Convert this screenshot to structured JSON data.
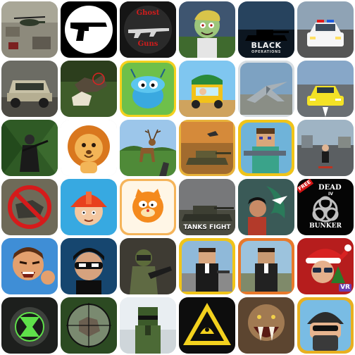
{
  "tiles": [
    {
      "name": "app-icon-helicopter-city",
      "icon": "helicopter-city-icon"
    },
    {
      "name": "app-icon-pistol",
      "icon": "pistol-icon"
    },
    {
      "name": "app-icon-ghost-guns",
      "icon": "rifle-icon",
      "title": "Ghost",
      "subtitle": "Guns"
    },
    {
      "name": "app-icon-zombie",
      "icon": "zombie-icon"
    },
    {
      "name": "app-icon-black-operations",
      "icon": "tank-silhouette-icon",
      "title": "BLACK",
      "subtitle": "OPERATIONS"
    },
    {
      "name": "app-icon-police-car",
      "icon": "police-car-icon"
    },
    {
      "name": "app-icon-military-jeep",
      "icon": "jeep-icon"
    },
    {
      "name": "app-icon-wolf-hunt",
      "icon": "wolf-icon"
    },
    {
      "name": "app-icon-blue-bug",
      "icon": "bug-icon"
    },
    {
      "name": "app-icon-tuk-tuk",
      "icon": "rickshaw-icon"
    },
    {
      "name": "app-icon-fighter-jet",
      "icon": "jet-icon"
    },
    {
      "name": "app-icon-yellow-racer",
      "icon": "sports-car-icon"
    },
    {
      "name": "app-icon-jungle-hunter",
      "icon": "hunter-icon"
    },
    {
      "name": "app-icon-cartoon-lion",
      "icon": "lion-icon"
    },
    {
      "name": "app-icon-deer-hunting",
      "icon": "deer-icon"
    },
    {
      "name": "app-icon-tank-battle",
      "icon": "tank-icon"
    },
    {
      "name": "app-icon-block-sniper",
      "icon": "block-sniper-icon"
    },
    {
      "name": "app-icon-skateboard-runner",
      "icon": "skater-icon"
    },
    {
      "name": "app-icon-no-hunting",
      "icon": "prohibited-icon"
    },
    {
      "name": "app-icon-construction-boy",
      "icon": "hardhat-boy-icon"
    },
    {
      "name": "app-icon-garfield",
      "icon": "cat-icon"
    },
    {
      "name": "app-icon-tanks-fight",
      "icon": "tank-icon",
      "title": "TANKS FIGHT"
    },
    {
      "name": "app-icon-dragon-warrior",
      "icon": "dragon-icon"
    },
    {
      "name": "app-icon-dead-bunker",
      "icon": "biohazard-icon",
      "badge": "FREE",
      "title": "DEAD",
      "middle": "IV",
      "subtitle": "BUNKER"
    },
    {
      "name": "app-icon-brawler",
      "icon": "brawler-icon"
    },
    {
      "name": "app-icon-masked-hero",
      "icon": "masked-hero-icon"
    },
    {
      "name": "app-icon-soldier-shooter",
      "icon": "soldier-icon"
    },
    {
      "name": "app-icon-block-mafia",
      "icon": "block-suit-icon"
    },
    {
      "name": "app-icon-block-gangster",
      "icon": "block-suit-icon"
    },
    {
      "name": "app-icon-santa-vr",
      "icon": "santa-icon",
      "badge": "VR"
    },
    {
      "name": "app-icon-alien-watch",
      "icon": "omnitrix-icon"
    },
    {
      "name": "app-icon-wolf-sniper",
      "icon": "crosshair-icon"
    },
    {
      "name": "app-icon-block-soldier",
      "icon": "block-soldier-icon"
    },
    {
      "name": "app-icon-warning-sign",
      "icon": "warning-icon"
    },
    {
      "name": "app-icon-sabertooth",
      "icon": "sabertooth-icon"
    },
    {
      "name": "app-icon-mini-soldier",
      "icon": "helmet-soldier-icon"
    }
  ]
}
